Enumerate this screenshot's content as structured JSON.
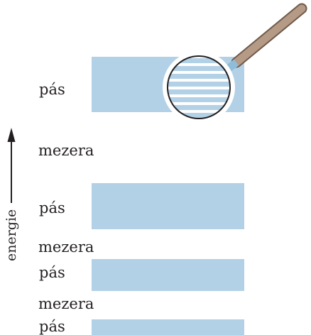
{
  "diagram": {
    "axis": {
      "label": "energie"
    },
    "bands_and_gaps": [
      {
        "kind": "band",
        "label": "pás"
      },
      {
        "kind": "gap",
        "label": "mezera"
      },
      {
        "kind": "band",
        "label": "pás"
      },
      {
        "kind": "gap",
        "label": "mezera"
      },
      {
        "kind": "band",
        "label": "pás"
      },
      {
        "kind": "gap",
        "label": "mezera"
      },
      {
        "kind": "band",
        "label": "pás"
      }
    ],
    "magnifier": {
      "icon": "magnifying-glass-icon",
      "shows": "discrete energy levels inside band"
    },
    "colors": {
      "band_fill": "#b3d1e6",
      "text": "#231f20",
      "handle": "#b59a86",
      "lens_ring": "#231f20"
    }
  }
}
